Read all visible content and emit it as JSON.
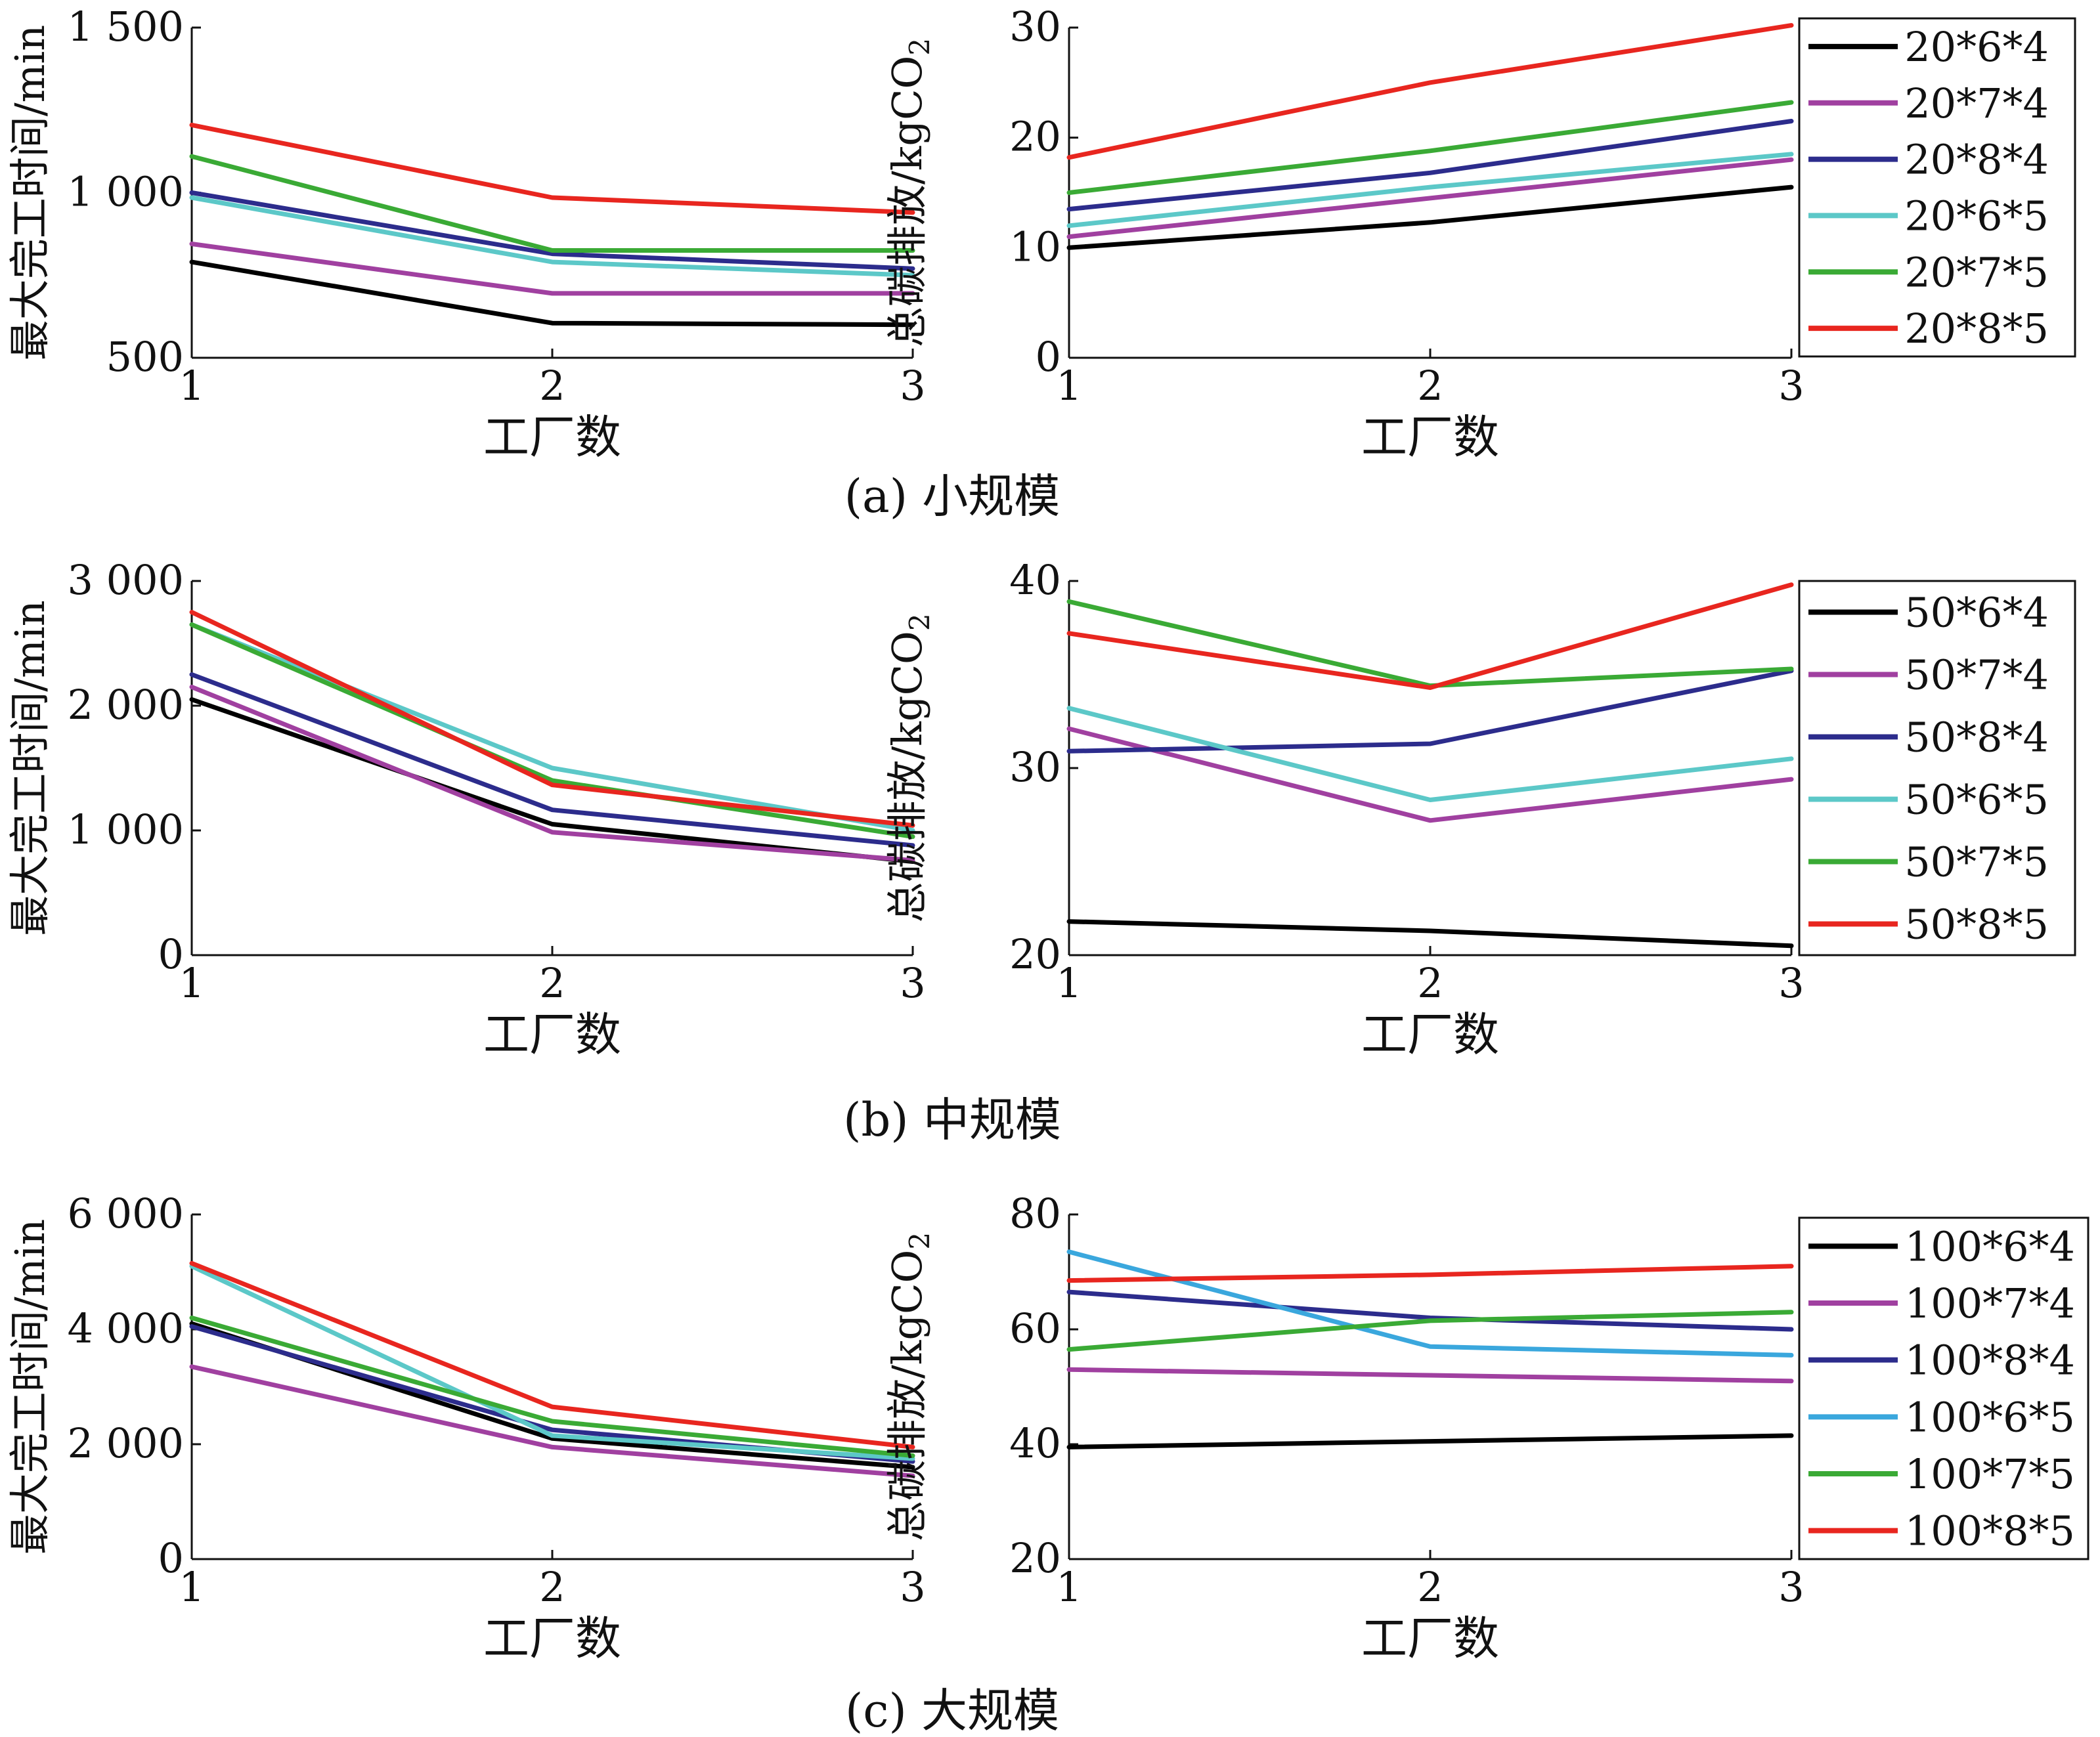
{
  "chart_data": [
    {
      "type": "line",
      "panel": "(a) 小规模 — left",
      "x": [
        1,
        2,
        3
      ],
      "xlabel": "工厂数",
      "ylabel": "最大完工时间/min",
      "ylim": [
        500,
        1500
      ],
      "ytick_labels": [
        "500",
        "1 000",
        "1 500"
      ],
      "xtick_labels": [
        "1",
        "2",
        "3"
      ],
      "series": [
        {
          "color": "#000000",
          "values": [
            790,
            605,
            600
          ]
        },
        {
          "color": "#a040a0",
          "values": [
            845,
            695,
            695
          ]
        },
        {
          "color": "#2c2c8c",
          "values": [
            1000,
            815,
            770
          ]
        },
        {
          "color": "#5cc8c8",
          "values": [
            985,
            790,
            750
          ]
        },
        {
          "color": "#3aaa35",
          "values": [
            1110,
            825,
            825
          ]
        },
        {
          "color": "#e8261f",
          "values": [
            1205,
            985,
            940
          ]
        }
      ]
    },
    {
      "type": "line",
      "panel": "(a) 小规模 — right",
      "x": [
        1,
        2,
        3
      ],
      "xlabel": "工厂数",
      "ylabel": "总碳排放/kgCO",
      "ylabel_sub": "2",
      "ylim": [
        0,
        30
      ],
      "ytick_labels": [
        "0",
        "10",
        "20",
        "30"
      ],
      "xtick_labels": [
        "1",
        "2",
        "3"
      ],
      "legend_loc": "right",
      "series": [
        {
          "name": "20*6*4",
          "color": "#000000",
          "values": [
            10,
            12.3,
            15.5
          ]
        },
        {
          "name": "20*7*4",
          "color": "#a040a0",
          "values": [
            11,
            14.5,
            18
          ]
        },
        {
          "name": "20*8*4",
          "color": "#2c2c8c",
          "values": [
            13.5,
            16.8,
            21.5
          ]
        },
        {
          "name": "20*6*5",
          "color": "#5cc8c8",
          "values": [
            12,
            15.5,
            18.5
          ]
        },
        {
          "name": "20*7*5",
          "color": "#3aaa35",
          "values": [
            15,
            18.8,
            23.2
          ]
        },
        {
          "name": "20*8*5",
          "color": "#e8261f",
          "values": [
            18.2,
            25,
            30.2
          ]
        }
      ]
    },
    {
      "type": "line",
      "panel": "(b) 中规模 — left",
      "x": [
        1,
        2,
        3
      ],
      "xlabel": "工厂数",
      "ylabel": "最大完工时间/min",
      "ylim": [
        0,
        3000
      ],
      "ytick_labels": [
        "0",
        "1 000",
        "2 000",
        "3 000"
      ],
      "xtick_labels": [
        "1",
        "2",
        "3"
      ],
      "series": [
        {
          "color": "#000000",
          "values": [
            2050,
            1050,
            750
          ]
        },
        {
          "color": "#a040a0",
          "values": [
            2150,
            985,
            760
          ]
        },
        {
          "color": "#2c2c8c",
          "values": [
            2250,
            1165,
            880
          ]
        },
        {
          "color": "#5cc8c8",
          "values": [
            2650,
            1500,
            1000
          ]
        },
        {
          "color": "#3aaa35",
          "values": [
            2650,
            1400,
            950
          ]
        },
        {
          "color": "#e8261f",
          "values": [
            2750,
            1365,
            1040
          ]
        }
      ]
    },
    {
      "type": "line",
      "panel": "(b) 中规模 — right",
      "x": [
        1,
        2,
        3
      ],
      "xlabel": "工厂数",
      "ylabel": "总碳排放/kgCO",
      "ylabel_sub": "2",
      "ylim": [
        20,
        40
      ],
      "ytick_labels": [
        "20",
        "30",
        "40"
      ],
      "xtick_labels": [
        "1",
        "2",
        "3"
      ],
      "legend_loc": "right",
      "series": [
        {
          "name": "50*6*4",
          "color": "#000000",
          "values": [
            21.8,
            21.3,
            20.5
          ]
        },
        {
          "name": "50*7*4",
          "color": "#a040a0",
          "values": [
            32.1,
            27.2,
            29.4
          ]
        },
        {
          "name": "50*8*4",
          "color": "#2c2c8c",
          "values": [
            30.9,
            31.3,
            35.2
          ]
        },
        {
          "name": "50*6*5",
          "color": "#5cc8c8",
          "values": [
            33.2,
            28.3,
            30.5
          ]
        },
        {
          "name": "50*7*5",
          "color": "#3aaa35",
          "values": [
            38.9,
            34.4,
            35.3
          ]
        },
        {
          "name": "50*8*5",
          "color": "#e8261f",
          "values": [
            37.2,
            34.3,
            39.8
          ]
        }
      ]
    },
    {
      "type": "line",
      "panel": "(c) 大规模 — left",
      "x": [
        1,
        2,
        3
      ],
      "xlabel": "工厂数",
      "ylabel": "最大完工时间/min",
      "ylim": [
        0,
        6000
      ],
      "ytick_labels": [
        "0",
        "2 000",
        "4 000",
        "6 000"
      ],
      "xtick_labels": [
        "1",
        "2",
        "3"
      ],
      "series": [
        {
          "color": "#000000",
          "values": [
            4100,
            2100,
            1600
          ]
        },
        {
          "color": "#a040a0",
          "values": [
            3350,
            1950,
            1450
          ]
        },
        {
          "color": "#2c2c8c",
          "values": [
            4050,
            2250,
            1700
          ]
        },
        {
          "color": "#5cc8c8",
          "values": [
            5100,
            2150,
            1750
          ]
        },
        {
          "color": "#3aaa35",
          "values": [
            4200,
            2400,
            1800
          ]
        },
        {
          "color": "#e8261f",
          "values": [
            5150,
            2650,
            1950
          ]
        }
      ]
    },
    {
      "type": "line",
      "panel": "(c) 大规模 — right",
      "x": [
        1,
        2,
        3
      ],
      "xlabel": "工厂数",
      "ylabel": "总碳排放/kgCO",
      "ylabel_sub": "2",
      "ylim": [
        20,
        80
      ],
      "ytick_labels": [
        "20",
        "40",
        "60",
        "80"
      ],
      "xtick_labels": [
        "1",
        "2",
        "3"
      ],
      "legend_loc": "right",
      "series": [
        {
          "name": "100*6*4",
          "color": "#000000",
          "values": [
            39.5,
            40.5,
            41.5
          ]
        },
        {
          "name": "100*7*4",
          "color": "#a040a0",
          "values": [
            53,
            52,
            51
          ]
        },
        {
          "name": "100*8*4",
          "color": "#2c2c8c",
          "values": [
            66.5,
            62,
            60
          ]
        },
        {
          "name": "100*6*5",
          "color": "#3aa7dd",
          "values": [
            73.5,
            57,
            55.5
          ]
        },
        {
          "name": "100*7*5",
          "color": "#3aaa35",
          "values": [
            56.5,
            61.5,
            63
          ]
        },
        {
          "name": "100*8*5",
          "color": "#e8261f",
          "values": [
            68.5,
            69.5,
            71
          ]
        }
      ]
    }
  ],
  "captions": [
    "(a) 小规模",
    "(b) 中规模",
    "(c) 大规模"
  ]
}
